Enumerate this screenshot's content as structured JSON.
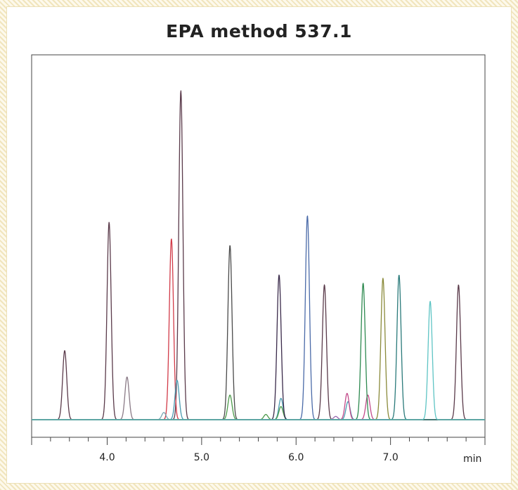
{
  "chart_data": {
    "type": "line",
    "title": "EPA method 537.1",
    "xlabel": "min",
    "ylabel": "",
    "xlim": [
      3.2,
      8.0
    ],
    "ylim": [
      0,
      100
    ],
    "x_ticks": [
      4.0,
      5.0,
      6.0,
      7.0
    ],
    "x_tick_labels": [
      "4.0",
      "5.0",
      "6.0",
      "7.0"
    ],
    "grid": false,
    "legend": "none",
    "baseline": 0,
    "series": [
      {
        "color": "#5a3a4a",
        "peaks": [
          [
            3.55,
            21
          ],
          [
            4.02,
            60
          ],
          [
            4.78,
            100
          ],
          [
            6.3,
            41
          ],
          [
            7.72,
            41
          ]
        ]
      },
      {
        "color": "#8a7a86",
        "peaks": [
          [
            4.21,
            13
          ]
        ]
      },
      {
        "color": "#d23a48",
        "peaks": [
          [
            4.68,
            55
          ]
        ]
      },
      {
        "color": "#4a9ab0",
        "peaks": [
          [
            4.74,
            12
          ],
          [
            5.84,
            6.5
          ],
          [
            6.55,
            5.5
          ]
        ]
      },
      {
        "color": "#7aa8b4",
        "peaks": [
          [
            4.6,
            2.2
          ]
        ]
      },
      {
        "color": "#4a4a4a",
        "peaks": [
          [
            5.3,
            53
          ]
        ]
      },
      {
        "color": "#4c9a4a",
        "peaks": [
          [
            5.3,
            7.5
          ],
          [
            5.68,
            1.6
          ],
          [
            5.84,
            4
          ]
        ]
      },
      {
        "color": "#3a2a4a",
        "peaks": [
          [
            5.82,
            44
          ]
        ]
      },
      {
        "color": "#4a6aa8",
        "peaks": [
          [
            6.12,
            62
          ]
        ]
      },
      {
        "color": "#c24a8a",
        "peaks": [
          [
            6.54,
            8
          ],
          [
            6.76,
            7.5
          ]
        ]
      },
      {
        "color": "#9a6ab0",
        "peaks": [
          [
            6.42,
            1
          ]
        ]
      },
      {
        "color": "#2e8a50",
        "peaks": [
          [
            6.71,
            41.5
          ]
        ]
      },
      {
        "color": "#8a8a3a",
        "peaks": [
          [
            6.92,
            43
          ]
        ]
      },
      {
        "color": "#2a7a7a",
        "peaks": [
          [
            7.09,
            44
          ]
        ]
      },
      {
        "color": "#5ec4c4",
        "peaks": [
          [
            7.42,
            36
          ]
        ]
      }
    ]
  }
}
